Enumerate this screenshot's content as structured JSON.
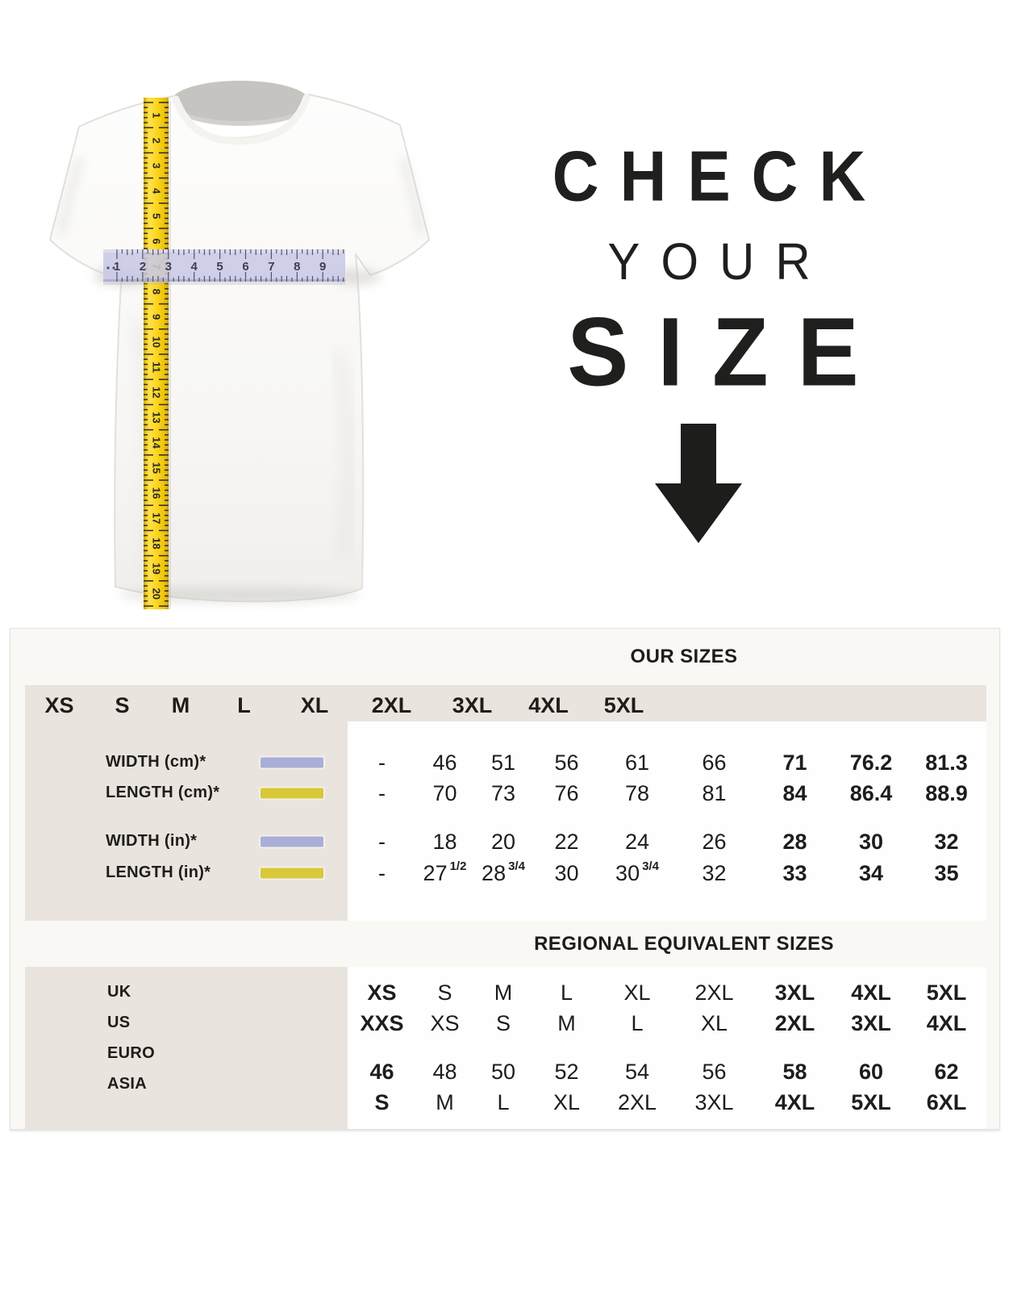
{
  "hero": {
    "title_line1": "CHECK",
    "title_line2": "YOUR",
    "title_line3": "SIZE"
  },
  "tshirt_graphic": {
    "vertical_tape_numbers": [
      1,
      2,
      3,
      4,
      5,
      6,
      7,
      8,
      9,
      10,
      11,
      12,
      13,
      14,
      15,
      16,
      17,
      18,
      19,
      20
    ],
    "horizontal_ruler_numbers": [
      1,
      2,
      3,
      4,
      5,
      6,
      7,
      8,
      9
    ]
  },
  "chart_data": {
    "type": "table",
    "title": "OUR SIZES",
    "section2_title": "REGIONAL EQUIVALENT SIZES",
    "columns": [
      "XS",
      "S",
      "M",
      "L",
      "XL",
      "2XL",
      "3XL",
      "4XL",
      "5XL"
    ],
    "measurement_rows": [
      {
        "label": "WIDTH (cm)*",
        "swatch": "lavender",
        "values": [
          "-",
          "46",
          "51",
          "56",
          "61",
          "66",
          "71",
          "76.2",
          "81.3"
        ]
      },
      {
        "label": "LENGTH (cm)*",
        "swatch": "yellow",
        "values": [
          "-",
          "70",
          "73",
          "76",
          "78",
          "81",
          "84",
          "86.4",
          "88.9"
        ]
      },
      {
        "label": "WIDTH (in)*",
        "swatch": "lavender",
        "values": [
          "-",
          "18",
          "20",
          "22",
          "24",
          "26",
          "28",
          "30",
          "32"
        ]
      },
      {
        "label": "LENGTH (in)*",
        "swatch": "yellow",
        "values": [
          "-",
          "27 1/2",
          "28 3/4",
          "30",
          "30 3/4",
          "32",
          "33",
          "34",
          "35"
        ]
      }
    ],
    "regional_rows": [
      {
        "label": "UK",
        "values": [
          "XS",
          "S",
          "M",
          "L",
          "XL",
          "2XL",
          "3XL",
          "4XL",
          "5XL"
        ]
      },
      {
        "label": "US",
        "values": [
          "XXS",
          "XS",
          "S",
          "M",
          "L",
          "XL",
          "2XL",
          "3XL",
          "4XL"
        ]
      },
      {
        "label": "EURO",
        "values": [
          "46",
          "48",
          "50",
          "52",
          "54",
          "56",
          "58",
          "60",
          "62"
        ]
      },
      {
        "label": "ASIA",
        "values": [
          "S",
          "M",
          "L",
          "XL",
          "2XL",
          "3XL",
          "4XL",
          "5XL",
          "6XL"
        ]
      }
    ]
  },
  "colors": {
    "beige_panel": "#e9e4dd",
    "band_offwhite": "#faf8f5",
    "data_panel": "#fefefe",
    "swatch_lavender": "#a9aed6",
    "swatch_yellow": "#d9c838",
    "tape_yellow": "#fbd215",
    "ruler_lavender": "#c8c8e6",
    "text": "#1d1d1b"
  }
}
